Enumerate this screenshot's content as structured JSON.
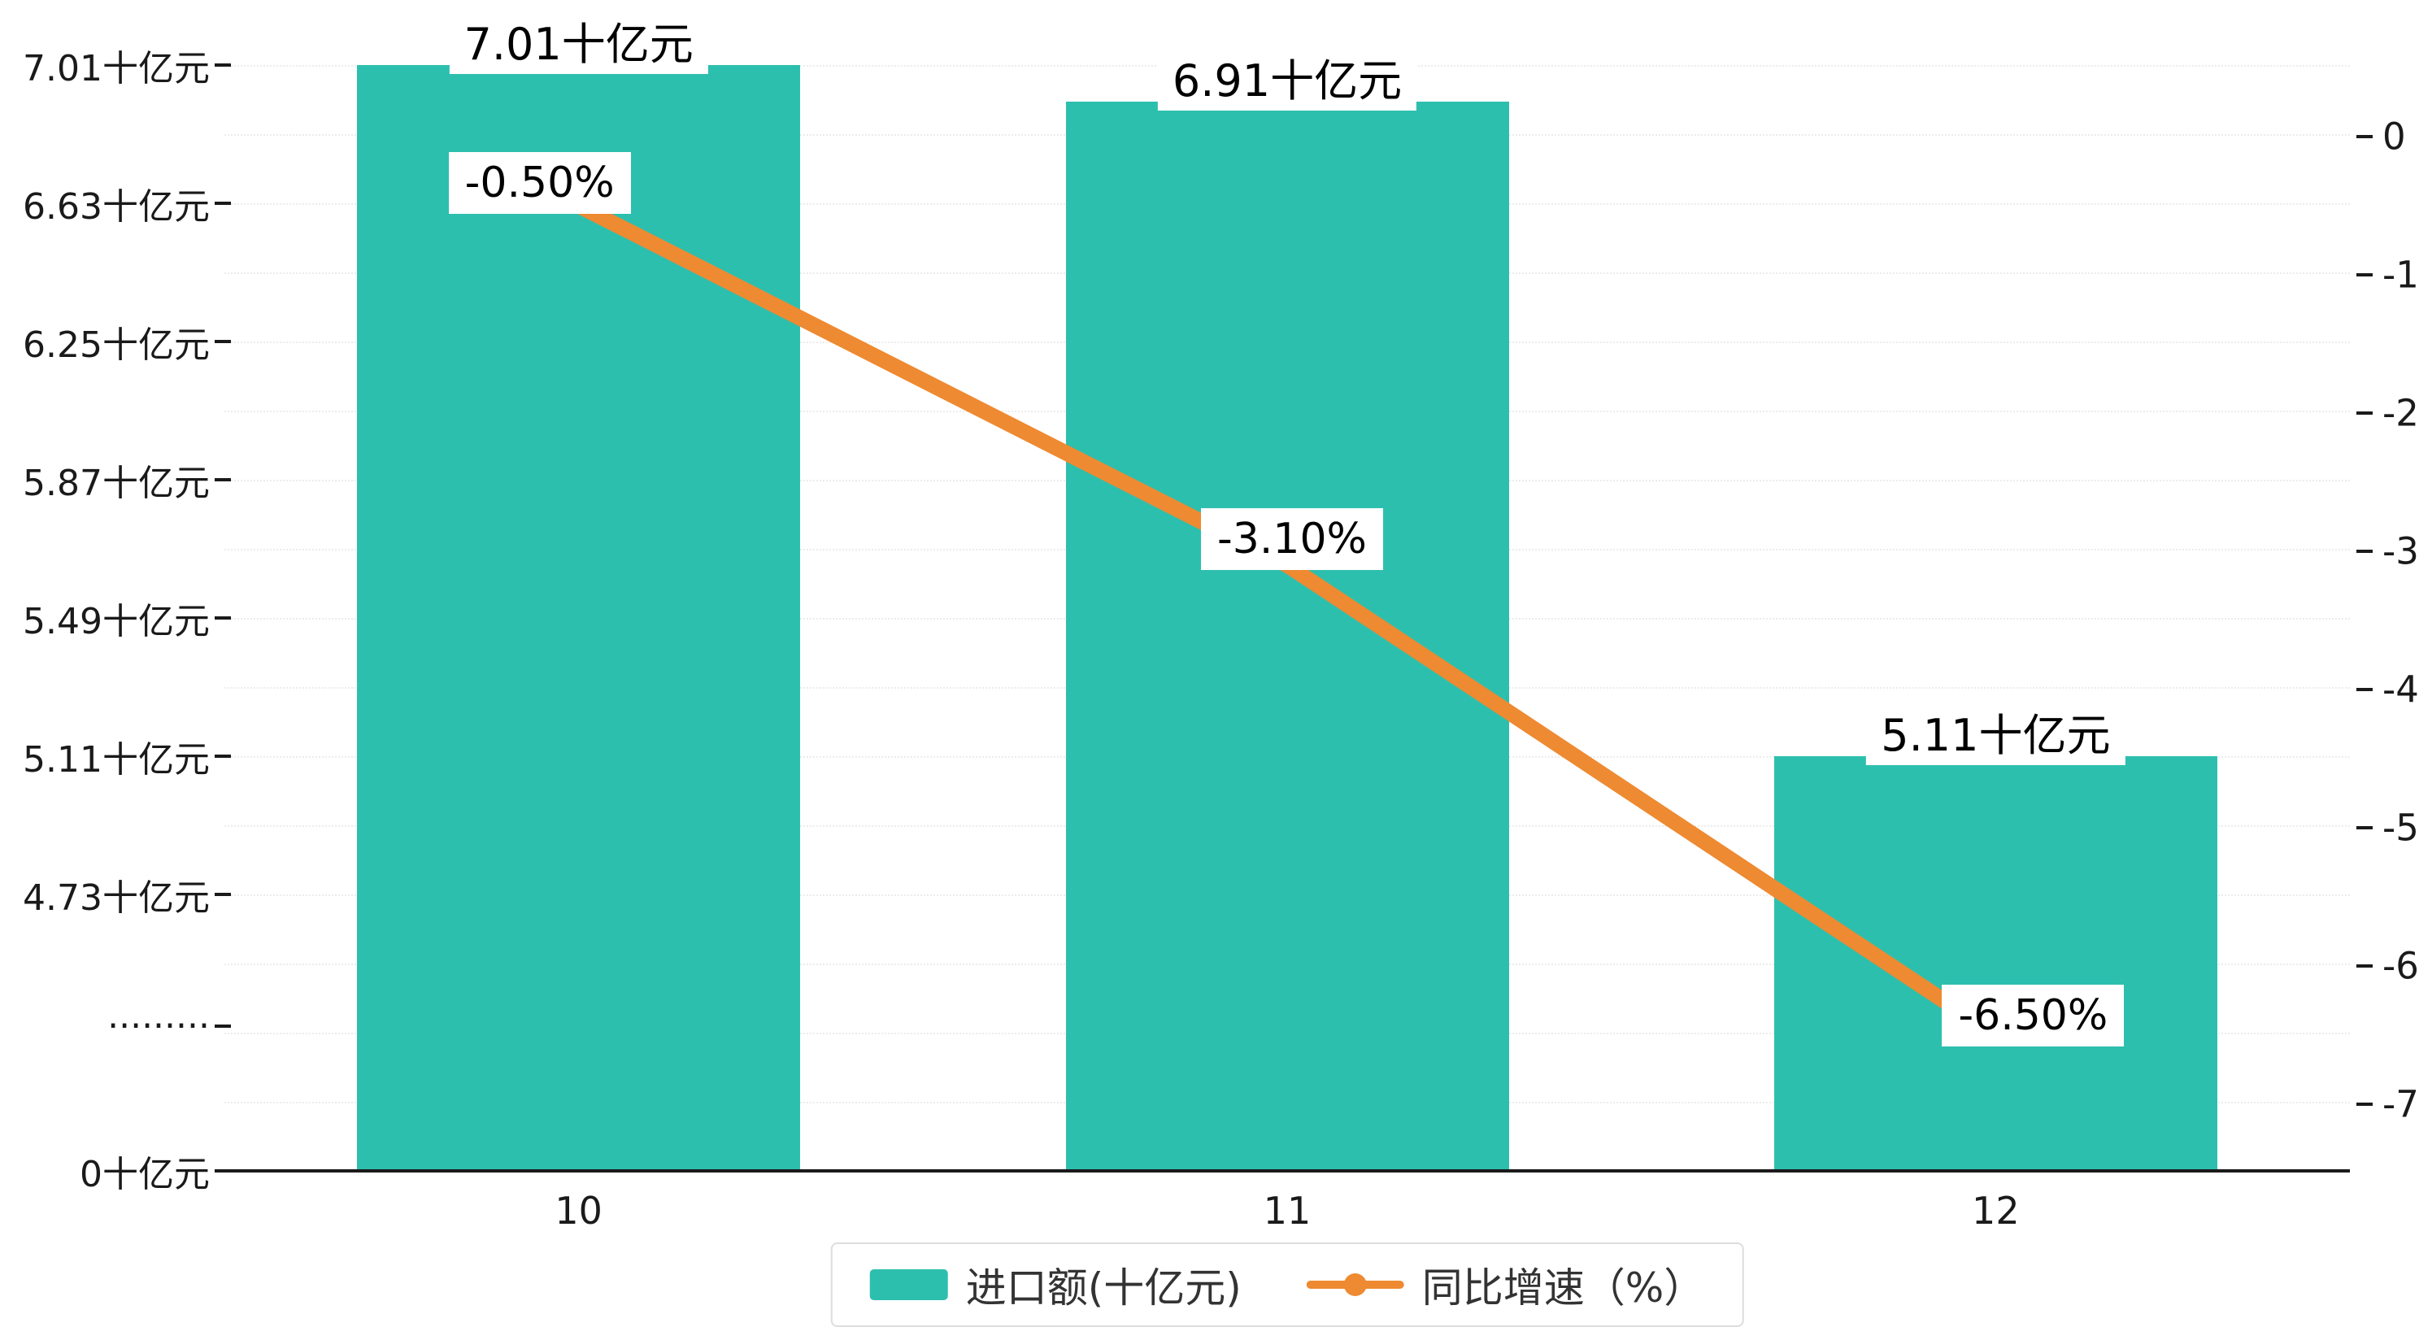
{
  "chart_data": {
    "type": "bar",
    "combo": [
      "bar",
      "line"
    ],
    "categories": [
      "10",
      "11",
      "12"
    ],
    "series": [
      {
        "name": "进口额(十亿元)",
        "type": "bar",
        "axis": "left",
        "values": [
          7.01,
          6.91,
          5.11
        ],
        "data_labels": [
          "7.01十亿元",
          "6.91十亿元",
          "5.11十亿元"
        ],
        "color": "#2dbfae"
      },
      {
        "name": "同比增速（%）",
        "type": "line",
        "axis": "right",
        "values": [
          -0.5,
          -3.1,
          -6.5
        ],
        "data_labels": [
          "-0.50%",
          "-3.10%",
          "-6.50%"
        ],
        "color": "#ee8a31"
      }
    ],
    "left_axis": {
      "tick_labels": [
        "7.01十亿元",
        "6.63十亿元",
        "6.25十亿元",
        "5.87十亿元",
        "5.49十亿元",
        "5.11十亿元",
        "4.73十亿元",
        "·········",
        "0十亿元"
      ],
      "tick_values": [
        7.01,
        6.63,
        6.25,
        5.87,
        5.49,
        5.11,
        4.73,
        null,
        0
      ],
      "break": true
    },
    "right_axis": {
      "tick_labels": [
        "0",
        "-1",
        "-2",
        "-3",
        "-4",
        "-5",
        "-6",
        "-7"
      ],
      "tick_values": [
        0,
        -1,
        -2,
        -3,
        -4,
        -5,
        -6,
        -7
      ],
      "range": [
        -7.5,
        0.5
      ]
    },
    "x_axis": {
      "tick_labels": [
        "10",
        "11",
        "12"
      ]
    },
    "legend": [
      {
        "label": "进口额(十亿元)",
        "marker": "rect",
        "color": "#2dbfae"
      },
      {
        "label": "同比增速（%）",
        "marker": "line-dot",
        "color": "#ee8a31"
      }
    ],
    "grid": true,
    "legend_position": "bottom-center"
  },
  "colors": {
    "bar": "#2dbfae",
    "line": "#ee8a31",
    "axis_line": "#1a1a1a",
    "text": "#1a1a1a",
    "grid": "#ececec",
    "label_bg": "#ffffff",
    "legend_border": "#dddddd",
    "background": "#ffffff"
  }
}
